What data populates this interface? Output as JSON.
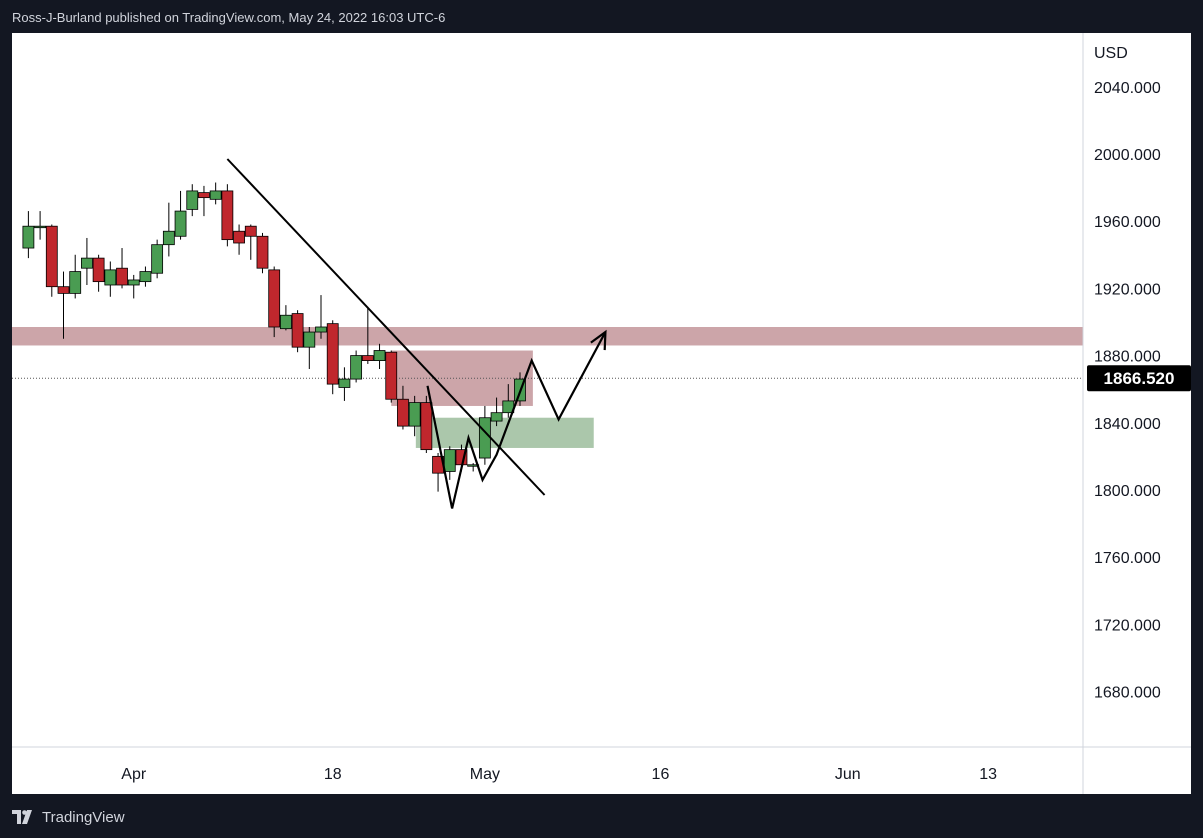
{
  "header": {
    "published_text": "Ross-J-Burland published on TradingView.com, May 24, 2022 16:03 UTC-6"
  },
  "footer": {
    "brand": "TradingView",
    "logo_icon": "tradingview-logo-icon"
  },
  "colors": {
    "up": "#4a9c52",
    "down": "#c0272d",
    "resistance_zone": "#c9a0a4",
    "support_zone": "#a6c4a6",
    "price_label_bg": "#000000",
    "line": "#000000"
  },
  "chart_data": {
    "type": "candlestick",
    "currency_label": "USD",
    "last_price": "1866.520",
    "y_ticks": [
      "2040.000",
      "2000.000",
      "1960.000",
      "1920.000",
      "1880.000",
      "1840.000",
      "1800.000",
      "1760.000",
      "1720.000",
      "1680.000"
    ],
    "ylim": [
      1647,
      2072
    ],
    "x_ticks": [
      {
        "label": "Apr",
        "day": 0
      },
      {
        "label": "18",
        "day": 17
      },
      {
        "label": "May",
        "day": 30
      },
      {
        "label": "16",
        "day": 45
      },
      {
        "label": "Jun",
        "day": 61
      },
      {
        "label": "13",
        "day": 73
      }
    ],
    "xlim": [
      -10.4,
      81.1
    ],
    "candles": [
      {
        "d": -9,
        "o": 1944,
        "h": 1966,
        "l": 1938,
        "c": 1957
      },
      {
        "d": -8,
        "o": 1957,
        "h": 1966,
        "l": 1949,
        "c": 1957
      },
      {
        "d": -7,
        "o": 1957,
        "h": 1958,
        "l": 1915,
        "c": 1921
      },
      {
        "d": -6,
        "o": 1921,
        "h": 1930,
        "l": 1890,
        "c": 1917
      },
      {
        "d": -5,
        "o": 1917,
        "h": 1940,
        "l": 1914,
        "c": 1930
      },
      {
        "d": -4,
        "o": 1932,
        "h": 1950,
        "l": 1922,
        "c": 1938
      },
      {
        "d": -3,
        "o": 1938,
        "h": 1940,
        "l": 1918,
        "c": 1924
      },
      {
        "d": -2,
        "o": 1922,
        "h": 1936,
        "l": 1915,
        "c": 1931
      },
      {
        "d": -1,
        "o": 1932,
        "h": 1944,
        "l": 1920,
        "c": 1922
      },
      {
        "d": 0,
        "o": 1922,
        "h": 1928,
        "l": 1914,
        "c": 1925
      },
      {
        "d": 1,
        "o": 1924,
        "h": 1933,
        "l": 1921,
        "c": 1930
      },
      {
        "d": 2,
        "o": 1929,
        "h": 1949,
        "l": 1926,
        "c": 1946
      },
      {
        "d": 3,
        "o": 1946,
        "h": 1971,
        "l": 1939,
        "c": 1954
      },
      {
        "d": 4,
        "o": 1951,
        "h": 1978,
        "l": 1949,
        "c": 1966
      },
      {
        "d": 5,
        "o": 1967,
        "h": 1982,
        "l": 1963,
        "c": 1978
      },
      {
        "d": 6,
        "o": 1977,
        "h": 1981,
        "l": 1963,
        "c": 1974
      },
      {
        "d": 7,
        "o": 1973,
        "h": 1983,
        "l": 1970,
        "c": 1978
      },
      {
        "d": 8,
        "o": 1978,
        "h": 1982,
        "l": 1945,
        "c": 1949
      },
      {
        "d": 9,
        "o": 1954,
        "h": 1958,
        "l": 1940,
        "c": 1947
      },
      {
        "d": 10,
        "o": 1957,
        "h": 1958,
        "l": 1937,
        "c": 1951
      },
      {
        "d": 11,
        "o": 1951,
        "h": 1953,
        "l": 1929,
        "c": 1932
      },
      {
        "d": 12,
        "o": 1931,
        "h": 1933,
        "l": 1891,
        "c": 1897
      },
      {
        "d": 13,
        "o": 1896,
        "h": 1910,
        "l": 1895,
        "c": 1904
      },
      {
        "d": 14,
        "o": 1905,
        "h": 1907,
        "l": 1882,
        "c": 1885
      },
      {
        "d": 15,
        "o": 1885,
        "h": 1897,
        "l": 1872,
        "c": 1894
      },
      {
        "d": 16,
        "o": 1894,
        "h": 1916,
        "l": 1890,
        "c": 1897
      },
      {
        "d": 17,
        "o": 1899,
        "h": 1901,
        "l": 1857,
        "c": 1863
      },
      {
        "d": 18,
        "o": 1861,
        "h": 1873,
        "l": 1853,
        "c": 1866
      },
      {
        "d": 19,
        "o": 1866,
        "h": 1883,
        "l": 1864,
        "c": 1880
      },
      {
        "d": 20,
        "o": 1880,
        "h": 1909,
        "l": 1875,
        "c": 1877
      },
      {
        "d": 21,
        "o": 1877,
        "h": 1887,
        "l": 1872,
        "c": 1883
      },
      {
        "d": 22,
        "o": 1882,
        "h": 1883,
        "l": 1852,
        "c": 1854
      },
      {
        "d": 23,
        "o": 1854,
        "h": 1862,
        "l": 1836,
        "c": 1838
      },
      {
        "d": 24,
        "o": 1838,
        "h": 1856,
        "l": 1832,
        "c": 1852
      },
      {
        "d": 25,
        "o": 1852,
        "h": 1856,
        "l": 1822,
        "c": 1824
      },
      {
        "d": 26,
        "o": 1820,
        "h": 1822,
        "l": 1799,
        "c": 1810
      },
      {
        "d": 27,
        "o": 1811,
        "h": 1826,
        "l": 1806,
        "c": 1824
      },
      {
        "d": 28,
        "o": 1824,
        "h": 1827,
        "l": 1811,
        "c": 1815
      },
      {
        "d": 29,
        "o": 1815,
        "h": 1816,
        "l": 1811,
        "c": 1815
      },
      {
        "d": 30,
        "o": 1819,
        "h": 1850,
        "l": 1815,
        "c": 1843
      },
      {
        "d": 31,
        "o": 1841,
        "h": 1855,
        "l": 1838,
        "c": 1846
      },
      {
        "d": 32,
        "o": 1846,
        "h": 1863,
        "l": 1843,
        "c": 1853
      },
      {
        "d": 33,
        "o": 1853,
        "h": 1870,
        "l": 1850,
        "c": 1866
      }
    ],
    "candle_index_map": "d values are trading-day sequence positions",
    "zones": [
      {
        "name": "resistance-band",
        "x_start": -10.4,
        "x_end": 81.1,
        "y_top": 1897,
        "y_bottom": 1886,
        "color_key": "resistance_zone"
      },
      {
        "name": "resistance-box",
        "x_start": 22,
        "x_end": 34.1,
        "y_top": 1883,
        "y_bottom": 1850,
        "color_key": "resistance_zone"
      },
      {
        "name": "support-box",
        "x_start": 24.1,
        "x_end": 39.3,
        "y_top": 1843,
        "y_bottom": 1825,
        "color_key": "support_zone"
      }
    ],
    "trendline": {
      "x1": 8,
      "y1": 1997,
      "x2": 35.1,
      "y2": 1797
    },
    "projection_path": [
      {
        "x": 25.1,
        "y": 1862
      },
      {
        "x": 27.2,
        "y": 1789
      },
      {
        "x": 28.6,
        "y": 1831
      },
      {
        "x": 29.8,
        "y": 1806
      },
      {
        "x": 31,
        "y": 1821
      },
      {
        "x": 34,
        "y": 1877
      },
      {
        "x": 36.3,
        "y": 1842
      },
      {
        "x": 40.3,
        "y": 1894
      }
    ]
  }
}
